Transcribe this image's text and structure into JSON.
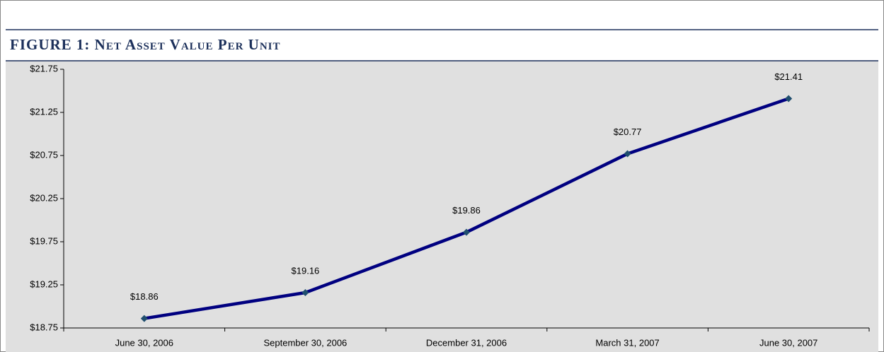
{
  "chart_data": {
    "type": "line",
    "title": "FIGURE 1: Net Asset Value Per Unit",
    "categories": [
      "June 30, 2006",
      "September 30, 2006",
      "December 31, 2006",
      "March 31, 2007",
      "June 30, 2007"
    ],
    "values": [
      18.86,
      19.16,
      19.86,
      20.77,
      21.41
    ],
    "value_labels": [
      "$18.86",
      "$19.16",
      "$19.86",
      "$20.77",
      "$21.41"
    ],
    "color": "#000080",
    "marker_color": "#1f4e6e",
    "ylim": [
      18.75,
      21.75
    ],
    "yticks": [
      {
        "value": 18.75,
        "label": "$18.75"
      },
      {
        "value": 19.25,
        "label": "$19.25"
      },
      {
        "value": 19.75,
        "label": "$19.75"
      },
      {
        "value": 20.25,
        "label": "$20.25"
      },
      {
        "value": 20.75,
        "label": "$20.75"
      },
      {
        "value": 21.25,
        "label": "$21.25"
      },
      {
        "value": 21.75,
        "label": "$21.75"
      }
    ],
    "grid": false
  }
}
